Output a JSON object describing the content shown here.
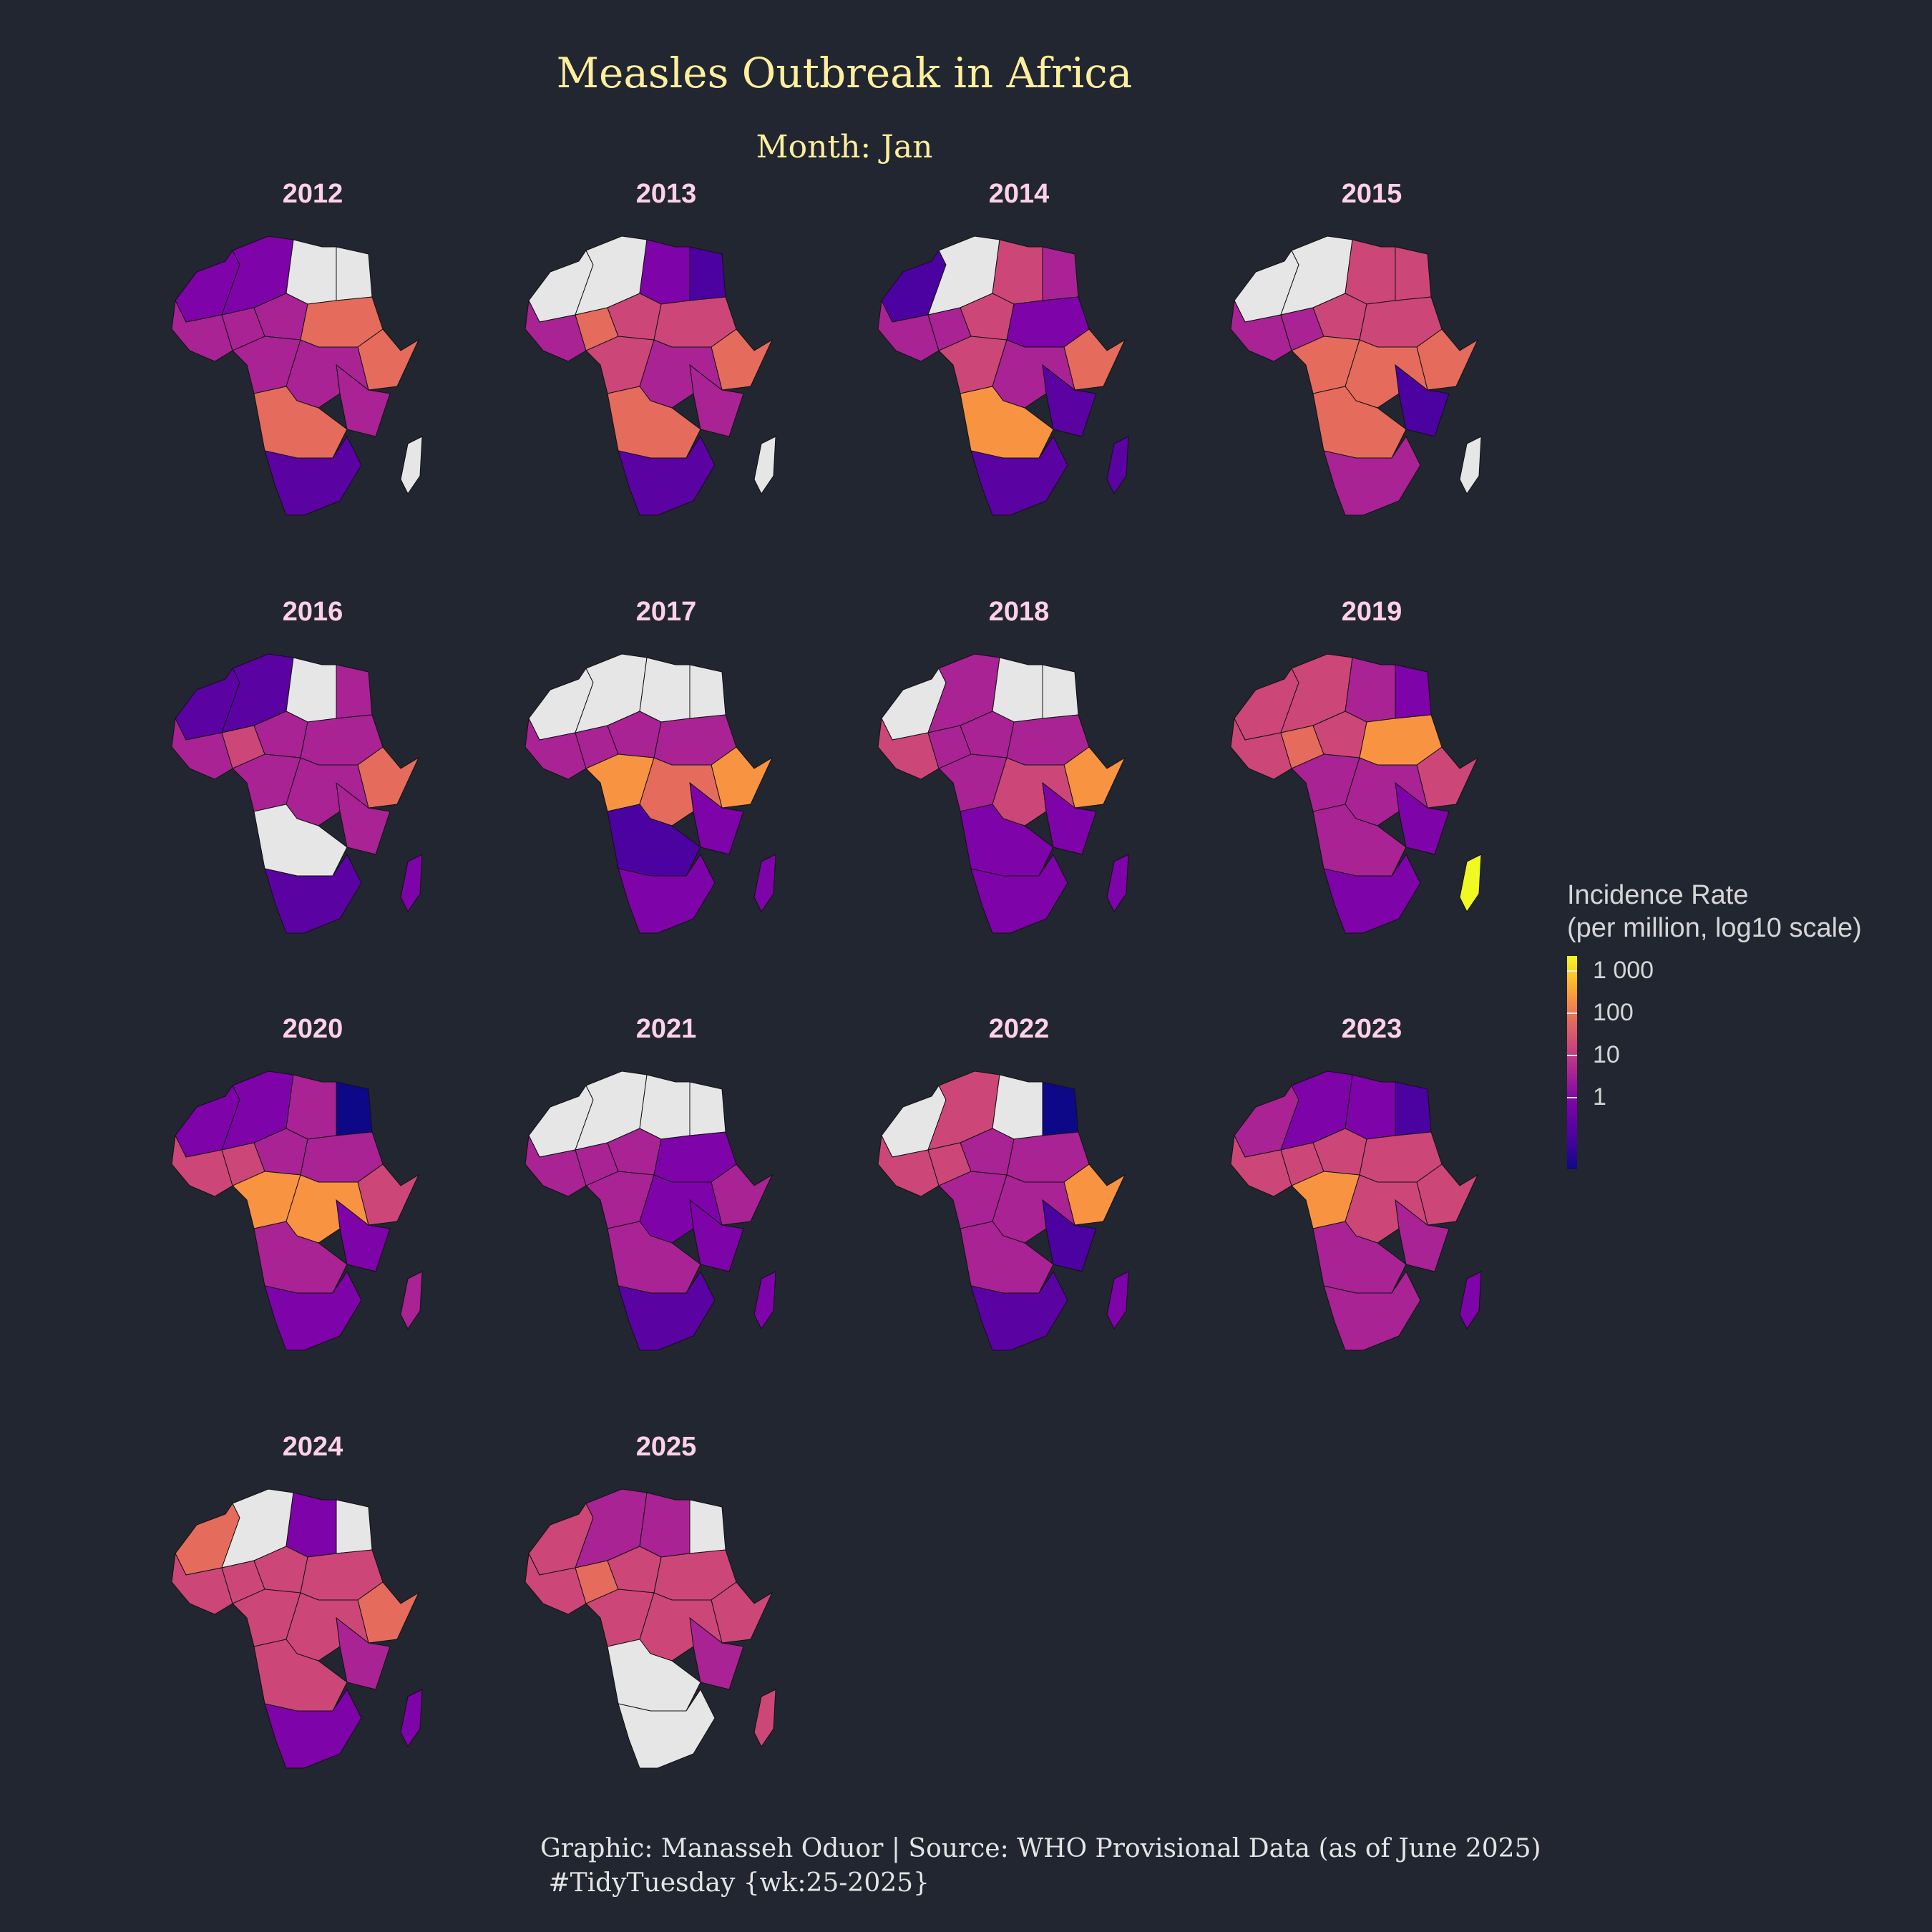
{
  "title": "Measles Outbreak in Africa",
  "subtitle": "Month: Jan",
  "caption": {
    "line1": "Graphic: Manasseh Oduor | Source: WHO Provisional Data (as of June 2025)",
    "line2": " #TidyTuesday {wk:25-2025}"
  },
  "legend": {
    "title_line1": "Incidence Rate",
    "title_line2": "(per million, log10 scale)",
    "scale": "log10",
    "colors": [
      "#0d0887",
      "#4c02a1",
      "#7e03a8",
      "#a92395",
      "#cc4778",
      "#e56b5d",
      "#f89441",
      "#fdc328",
      "#f0f921"
    ],
    "ticks": [
      {
        "label": "1 000",
        "value": 1000
      },
      {
        "label": "100",
        "value": 100
      },
      {
        "label": "10",
        "value": 10
      },
      {
        "label": "1",
        "value": 1
      }
    ]
  },
  "no_data_color": "#e6e6e6",
  "regions": [
    "NW",
    "AL",
    "LY",
    "EG",
    "WAF",
    "NG",
    "SH",
    "SD",
    "HORN",
    "EA",
    "CW",
    "CD",
    "SA",
    "ZA",
    "MG"
  ],
  "panels": [
    {
      "year": "2012",
      "fills": {
        "NW": "#7e03a8",
        "AL": "#7e03a8",
        "LY": "#e6e6e6",
        "EG": "#e6e6e6",
        "WAF": "#a92395",
        "NG": "#a92395",
        "SH": "#a92395",
        "SD": "#e56b5d",
        "HORN": "#e56b5d",
        "EA": "#a92395",
        "CW": "#a92395",
        "CD": "#a92395",
        "SA": "#e56b5d",
        "ZA": "#5b02a3",
        "MG": "#e6e6e6"
      }
    },
    {
      "year": "2013",
      "fills": {
        "NW": "#e6e6e6",
        "AL": "#e6e6e6",
        "LY": "#7e03a8",
        "EG": "#4c02a1",
        "WAF": "#a92395",
        "NG": "#e56b5d",
        "SH": "#cc4778",
        "SD": "#cc4778",
        "HORN": "#e56b5d",
        "EA": "#a92395",
        "CW": "#cc4778",
        "CD": "#a92395",
        "SA": "#e56b5d",
        "ZA": "#5b02a3",
        "MG": "#e6e6e6"
      }
    },
    {
      "year": "2014",
      "fills": {
        "NW": "#4c02a1",
        "AL": "#e6e6e6",
        "LY": "#cc4778",
        "EG": "#a92395",
        "WAF": "#a92395",
        "NG": "#a92395",
        "SH": "#cc4778",
        "SD": "#7e03a8",
        "HORN": "#e56b5d",
        "EA": "#5b02a3",
        "CW": "#cc4778",
        "CD": "#a92395",
        "SA": "#f89441",
        "ZA": "#5b02a3",
        "MG": "#5b02a3"
      }
    },
    {
      "year": "2015",
      "fills": {
        "NW": "#e6e6e6",
        "AL": "#e6e6e6",
        "LY": "#cc4778",
        "EG": "#cc4778",
        "WAF": "#a92395",
        "NG": "#a92395",
        "SH": "#cc4778",
        "SD": "#cc4778",
        "HORN": "#e56b5d",
        "EA": "#4c02a1",
        "CW": "#e56b5d",
        "CD": "#e56b5d",
        "SA": "#e56b5d",
        "ZA": "#a92395",
        "MG": "#e6e6e6"
      }
    },
    {
      "year": "2016",
      "fills": {
        "NW": "#5b02a3",
        "AL": "#5b02a3",
        "LY": "#e6e6e6",
        "EG": "#a92395",
        "WAF": "#a92395",
        "NG": "#cc4778",
        "SH": "#a92395",
        "SD": "#a92395",
        "HORN": "#e56b5d",
        "EA": "#a92395",
        "CW": "#a92395",
        "CD": "#a92395",
        "SA": "#e6e6e6",
        "ZA": "#5b02a3",
        "MG": "#7e03a8"
      }
    },
    {
      "year": "2017",
      "fills": {
        "NW": "#e6e6e6",
        "AL": "#e6e6e6",
        "LY": "#e6e6e6",
        "EG": "#e6e6e6",
        "WAF": "#a92395",
        "NG": "#a92395",
        "SH": "#a92395",
        "SD": "#a92395",
        "HORN": "#f89441",
        "EA": "#7e03a8",
        "CW": "#f89441",
        "CD": "#e56b5d",
        "SA": "#4c02a1",
        "ZA": "#7e03a8",
        "MG": "#7e03a8"
      }
    },
    {
      "year": "2018",
      "fills": {
        "NW": "#e6e6e6",
        "AL": "#a92395",
        "LY": "#e6e6e6",
        "EG": "#e6e6e6",
        "WAF": "#cc4778",
        "NG": "#a92395",
        "SH": "#a92395",
        "SD": "#a92395",
        "HORN": "#f89441",
        "EA": "#7e03a8",
        "CW": "#a92395",
        "CD": "#cc4778",
        "SA": "#7e03a8",
        "ZA": "#7e03a8",
        "MG": "#7e03a8"
      }
    },
    {
      "year": "2019",
      "fills": {
        "NW": "#cc4778",
        "AL": "#cc4778",
        "LY": "#a92395",
        "EG": "#7e03a8",
        "WAF": "#cc4778",
        "NG": "#e56b5d",
        "SH": "#cc4778",
        "SD": "#f89441",
        "HORN": "#cc4778",
        "EA": "#7e03a8",
        "CW": "#a92395",
        "CD": "#a92395",
        "SA": "#a92395",
        "ZA": "#7e03a8",
        "MG": "#f0f921"
      }
    },
    {
      "year": "2020",
      "fills": {
        "NW": "#7e03a8",
        "AL": "#7e03a8",
        "LY": "#a92395",
        "EG": "#0d0887",
        "WAF": "#cc4778",
        "NG": "#cc4778",
        "SH": "#a92395",
        "SD": "#a92395",
        "HORN": "#cc4778",
        "EA": "#7e03a8",
        "CW": "#f89441",
        "CD": "#f89441",
        "SA": "#a92395",
        "ZA": "#7e03a8",
        "MG": "#a92395"
      }
    },
    {
      "year": "2021",
      "fills": {
        "NW": "#e6e6e6",
        "AL": "#e6e6e6",
        "LY": "#e6e6e6",
        "EG": "#e6e6e6",
        "WAF": "#a92395",
        "NG": "#a92395",
        "SH": "#a92395",
        "SD": "#7e03a8",
        "HORN": "#a92395",
        "EA": "#7e03a8",
        "CW": "#a92395",
        "CD": "#7e03a8",
        "SA": "#a92395",
        "ZA": "#5b02a3",
        "MG": "#7e03a8"
      }
    },
    {
      "year": "2022",
      "fills": {
        "NW": "#e6e6e6",
        "AL": "#cc4778",
        "LY": "#e6e6e6",
        "EG": "#0d0887",
        "WAF": "#cc4778",
        "NG": "#cc4778",
        "SH": "#a92395",
        "SD": "#a92395",
        "HORN": "#f89441",
        "EA": "#4c02a1",
        "CW": "#a92395",
        "CD": "#a92395",
        "SA": "#a92395",
        "ZA": "#5b02a3",
        "MG": "#7e03a8"
      }
    },
    {
      "year": "2023",
      "fills": {
        "NW": "#a92395",
        "AL": "#7e03a8",
        "LY": "#7e03a8",
        "EG": "#4c02a1",
        "WAF": "#cc4778",
        "NG": "#cc4778",
        "SH": "#cc4778",
        "SD": "#cc4778",
        "HORN": "#cc4778",
        "EA": "#a92395",
        "CW": "#f89441",
        "CD": "#cc4778",
        "SA": "#a92395",
        "ZA": "#a92395",
        "MG": "#7e03a8"
      }
    },
    {
      "year": "2024",
      "fills": {
        "NW": "#e56b5d",
        "AL": "#e6e6e6",
        "LY": "#7e03a8",
        "EG": "#e6e6e6",
        "WAF": "#cc4778",
        "NG": "#cc4778",
        "SH": "#cc4778",
        "SD": "#cc4778",
        "HORN": "#e56b5d",
        "EA": "#a92395",
        "CW": "#cc4778",
        "CD": "#cc4778",
        "SA": "#cc4778",
        "ZA": "#7e03a8",
        "MG": "#7e03a8"
      }
    },
    {
      "year": "2025",
      "fills": {
        "NW": "#cc4778",
        "AL": "#a92395",
        "LY": "#a92395",
        "EG": "#e6e6e6",
        "WAF": "#cc4778",
        "NG": "#e56b5d",
        "SH": "#cc4778",
        "SD": "#cc4778",
        "HORN": "#cc4778",
        "EA": "#a92395",
        "CW": "#cc4778",
        "CD": "#cc4778",
        "SA": "#e6e6e6",
        "ZA": "#e6e6e6",
        "MG": "#cc4778"
      }
    }
  ]
}
